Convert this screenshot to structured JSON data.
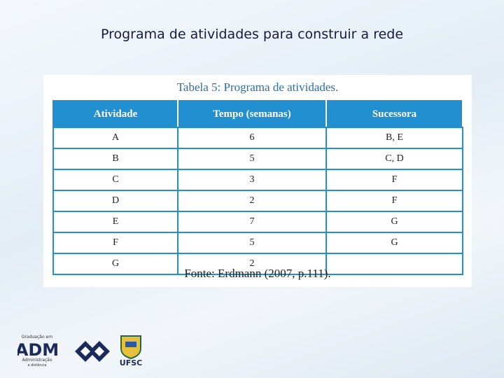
{
  "slide_title": "Programa de atividades para construir a rede",
  "table": {
    "caption": "Tabela 5: Programa de atividades.",
    "headers": [
      "Atividade",
      "Tempo (semanas)",
      "Sucessora"
    ],
    "rows": [
      [
        "A",
        6,
        "B, E"
      ],
      [
        "B",
        5,
        "C, D"
      ],
      [
        "C",
        3,
        "F"
      ],
      [
        "D",
        2,
        "F"
      ],
      [
        "E",
        7,
        "G"
      ],
      [
        "F",
        5,
        "G"
      ],
      [
        "G",
        2,
        null
      ]
    ],
    "source": "Fonte: Erdmann (2007, p.111)."
  },
  "logos": {
    "adm_top": "Graduação em",
    "adm": "ADM",
    "adm_sub1": "Administração",
    "adm_sub2": "a distância",
    "ufsc": "UFSC"
  }
}
